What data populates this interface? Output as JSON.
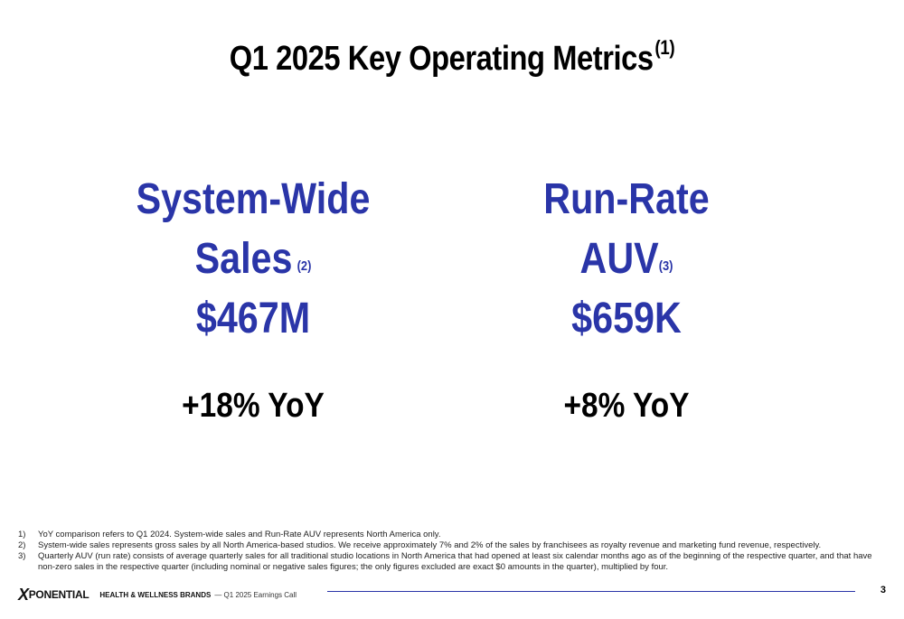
{
  "title": {
    "text": "Q1 2025 Key Operating Metrics",
    "sup": "(1)"
  },
  "metrics": [
    {
      "line1": "System-Wide",
      "line2": "Sales",
      "sup": "(2)",
      "value": "$467M",
      "yoy": "+18% YoY"
    },
    {
      "line1": "Run-Rate",
      "line2": "AUV",
      "sup": "(3)",
      "value": "$659K",
      "yoy": "+8% YoY"
    }
  ],
  "footnotes": [
    {
      "num": "1)",
      "text": "YoY comparison refers to Q1 2024. System-wide sales and Run-Rate AUV represents North America only."
    },
    {
      "num": "2)",
      "text": "System-wide sales represents gross sales by all North America-based studios. We receive approximately 7% and 2% of the sales by franchisees as royalty revenue and marketing fund revenue, respectively."
    },
    {
      "num": "3)",
      "text": "Quarterly AUV (run rate) consists of average quarterly sales for all traditional studio locations in North America that had opened at least six calendar months ago as of the beginning of the respective quarter, and that have non-zero sales in the respective quarter (including nominal or negative sales figures; the only figures excluded are exact $0 amounts in the quarter), multiplied by four."
    }
  ],
  "footer": {
    "logo_text": "PONENTIAL",
    "logo_mark": "X",
    "brand": "HEALTH & WELLNESS BRANDS",
    "subtitle": "— Q1 2025 Earnings Call",
    "page_number": "3"
  },
  "colors": {
    "accent": "#2a35a8",
    "text": "#000000"
  }
}
